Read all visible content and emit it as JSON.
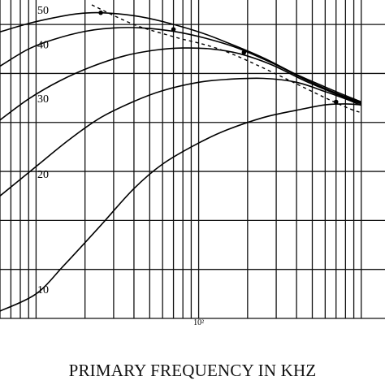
{
  "chart_data": {
    "type": "line",
    "xlabel": "PRIMARY FREQUENCY IN KHZ",
    "ylabel": "",
    "x_scale": "log",
    "xlim": [
      6,
      1400
    ],
    "ylim": [
      0,
      65
    ],
    "grid": true,
    "x_tick_labels": [
      {
        "x": 100,
        "label": "10²"
      }
    ],
    "series": [
      {
        "name": "50",
        "label": "50",
        "x": [
          6,
          9,
          13,
          18,
          25,
          40,
          60,
          100,
          150,
          250,
          400,
          700,
          1000
        ],
        "y": [
          58.5,
          60.2,
          61.4,
          62.2,
          62.4,
          61.8,
          60.6,
          58.5,
          56.3,
          53.2,
          49.8,
          46.3,
          44.2
        ]
      },
      {
        "name": "40",
        "label": "40",
        "x": [
          6,
          9,
          13,
          20,
          30,
          45,
          70,
          110,
          170,
          280,
          450,
          700,
          1000
        ],
        "y": [
          51.5,
          55.0,
          57.0,
          58.6,
          59.3,
          59.3,
          58.6,
          57.2,
          55.3,
          52.2,
          48.8,
          46.0,
          44.0
        ]
      },
      {
        "name": "30",
        "label": "30",
        "x": [
          6,
          9,
          14,
          22,
          35,
          55,
          80,
          120,
          180,
          280,
          450,
          700,
          1000
        ],
        "y": [
          40.5,
          44.8,
          48.5,
          51.4,
          53.6,
          54.8,
          55.2,
          55.0,
          54.0,
          51.8,
          48.5,
          45.8,
          43.8
        ]
      },
      {
        "name": "20",
        "label": "20",
        "x": [
          6,
          10,
          16,
          25,
          40,
          60,
          100,
          150,
          250,
          400,
          600,
          800,
          1000
        ],
        "y": [
          25.0,
          31.0,
          36.5,
          41.0,
          44.3,
          46.5,
          48.2,
          48.8,
          49.0,
          48.2,
          46.3,
          44.8,
          43.5
        ]
      },
      {
        "name": "10",
        "label": "10",
        "x": [
          6,
          10,
          15,
          25,
          40,
          60,
          100,
          150,
          250,
          400,
          600,
          800,
          1000
        ],
        "y": [
          1.5,
          5.0,
          11.0,
          19.0,
          26.5,
          31.5,
          35.8,
          38.5,
          41.0,
          42.5,
          43.6,
          43.8,
          43.6
        ]
      }
    ],
    "peak_locus": {
      "style": "dashed",
      "x": [
        22,
        40,
        70,
        160,
        700,
        1000
      ],
      "y": [
        64,
        60,
        57.5,
        54,
        44,
        42
      ]
    },
    "peak_points": {
      "x": [
        25,
        70,
        190,
        700
      ],
      "y": [
        62.4,
        59,
        54.3,
        44.2
      ]
    }
  }
}
